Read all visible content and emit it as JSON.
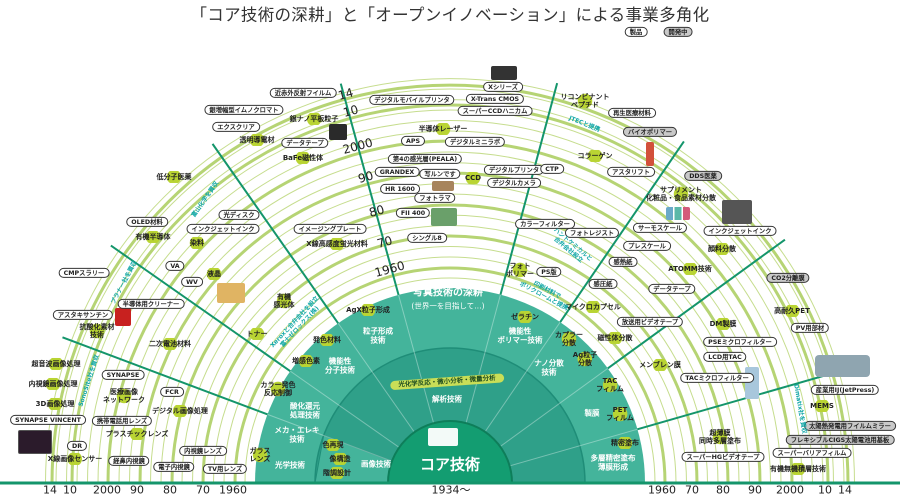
{
  "title": "「コア技術の深耕」と「オープンイノベーション」による事業多角化",
  "legend": {
    "product": "製品",
    "developing": "開発中"
  },
  "colors": {
    "ring": "#c6dd8e",
    "ring_decade": "#b6d474",
    "sector": "#14956b",
    "teal_outer": "#44b49b",
    "teal_inner": "#2fa089",
    "core": "#139d71",
    "tech_dot": "#b9d433",
    "acquisition_text": "#11a7a7",
    "developing_pill": "#c9c9c9"
  },
  "years_left": [
    "14",
    "10",
    "2000",
    "90",
    "80",
    "70",
    "1960"
  ],
  "years_right": [
    "1960",
    "70",
    "80",
    "90",
    "2000",
    "10",
    "14"
  ],
  "years_axis": [
    "14",
    "10",
    "2000",
    "90",
    "80",
    "70",
    "1960"
  ],
  "origin_year": "1934〜",
  "core": {
    "center": "コア技術",
    "photo_title": "写真技術の深耕",
    "photo_sub": "(世界一を目指して…)",
    "analysis_band": "光化学反応・微小分析・微量分析",
    "analysis": "解析技術",
    "base_techs": [
      "粒子形成\n技術",
      "機能性\n分子技術",
      "酸化還元\n処理技術",
      "メカ・エレキ\n技術",
      "光学技術",
      "画像技術",
      "機能性\nポリマー技術",
      "ナノ分散\n技術",
      "製膜",
      "多層精密塗布\n薄膜形成"
    ]
  },
  "products": [
    "近赤外反射フイルム",
    "銀増幅型イムノクロマト",
    "エクスクリア",
    "データテープ",
    "光ディスク",
    "インクジェットインク",
    "OLED材料",
    "VA",
    "WV",
    "CMPスラリー",
    "半導体用クリーナー",
    "アスタキサンチン",
    "SYNAPSE",
    "SYNAPSE VINCENT",
    "FCR",
    "携帯電話用レンズ",
    "DR",
    "経鼻内視鏡",
    "内視鏡レンズ",
    "電子内視鏡",
    "TV用レンズ",
    "イメージングプレート",
    "Xシリーズ",
    "X-Trans CMOS",
    "スーパーCCDハニカム",
    "デジタルモバイルプリンタ",
    "APS",
    "デジタルミニラボ",
    "第4の感光層(PEALA)",
    "GRANDEX",
    "写ルンです",
    "デジタルプリンタ",
    "デジタルカメラ",
    "HR 1600",
    "フォトラマ",
    "FII 400",
    "シングル8",
    "再生医療材料",
    "アスタリフト",
    "CTP",
    "インクジェットインク",
    "サーモスケール",
    "プレスケール",
    "カラーフィルター",
    "フォトレジスト",
    "感熱紙",
    "感圧紙",
    "データテープ",
    "PS版",
    "放送用ビデオテープ",
    "PV用部材",
    "PSEミクロフィルター",
    "LCD用TAC",
    "TACミクロフィルター",
    "産業用IJ(JetPress)",
    "スーパーバリアフィルム",
    "スーパーHGビデオテープ"
  ],
  "developing": [
    "バイオポリマー",
    "DDS医薬",
    "CO2分離膜",
    "太陽熱発電用フイルムミラー",
    "フレキシブルCIGS太陽電池用基板"
  ],
  "techs": [
    "透明導電材",
    "銀ナノ平板粒子",
    "BaFe磁性体",
    "低分子医薬",
    "染料",
    "有機半導体",
    "液晶",
    "抗酸化素材\n技術",
    "二次電池材料",
    "超音波画像処理",
    "医療画像\nネットワーク",
    "内視鏡画像処理",
    "3D画像処理",
    "デジタル画像処理",
    "プラスチックレンズ",
    "X線画像センサー",
    "X線高感度蛍光材料",
    "半導体レーザー",
    "CCD",
    "リコンビナント\nペプチド",
    "コラーゲン",
    "サプリメント\n化粧品・食品素材分散",
    "顔料分散",
    "ATOMM技術",
    "フォト\nポリマー",
    "マイクロカプセル",
    "磁性体分散",
    "高耐久PET",
    "DM製膜",
    "メンブレン膜",
    "MEMS",
    "有機無機積層技術",
    "超薄膜\n同時多層塗布",
    "有機\n感光体",
    "トナー",
    "発色材料",
    "増感色素",
    "AgX粒子形成",
    "カラー発色\n反応制御",
    "ガラス\nレンズ",
    "色再現",
    "像構造",
    "階調設計",
    "ゼラチン",
    "カプラー\n分散",
    "Ag粒子\n分散",
    "TAC\nフィルム",
    "PET\nフィルム",
    "精密塗布"
  ],
  "acquisitions": [
    "富山化学を買収",
    "プラナー社を買収",
    "SonoSite社を買収",
    "Xeroxと合弁会社を設立\n富士ゼロックス(株)",
    "JTECと提携",
    "ハントケミカルと\n合弁会社設立",
    "印刷材料で\nポリクロームと提携",
    "Dimatix社を買収"
  ]
}
